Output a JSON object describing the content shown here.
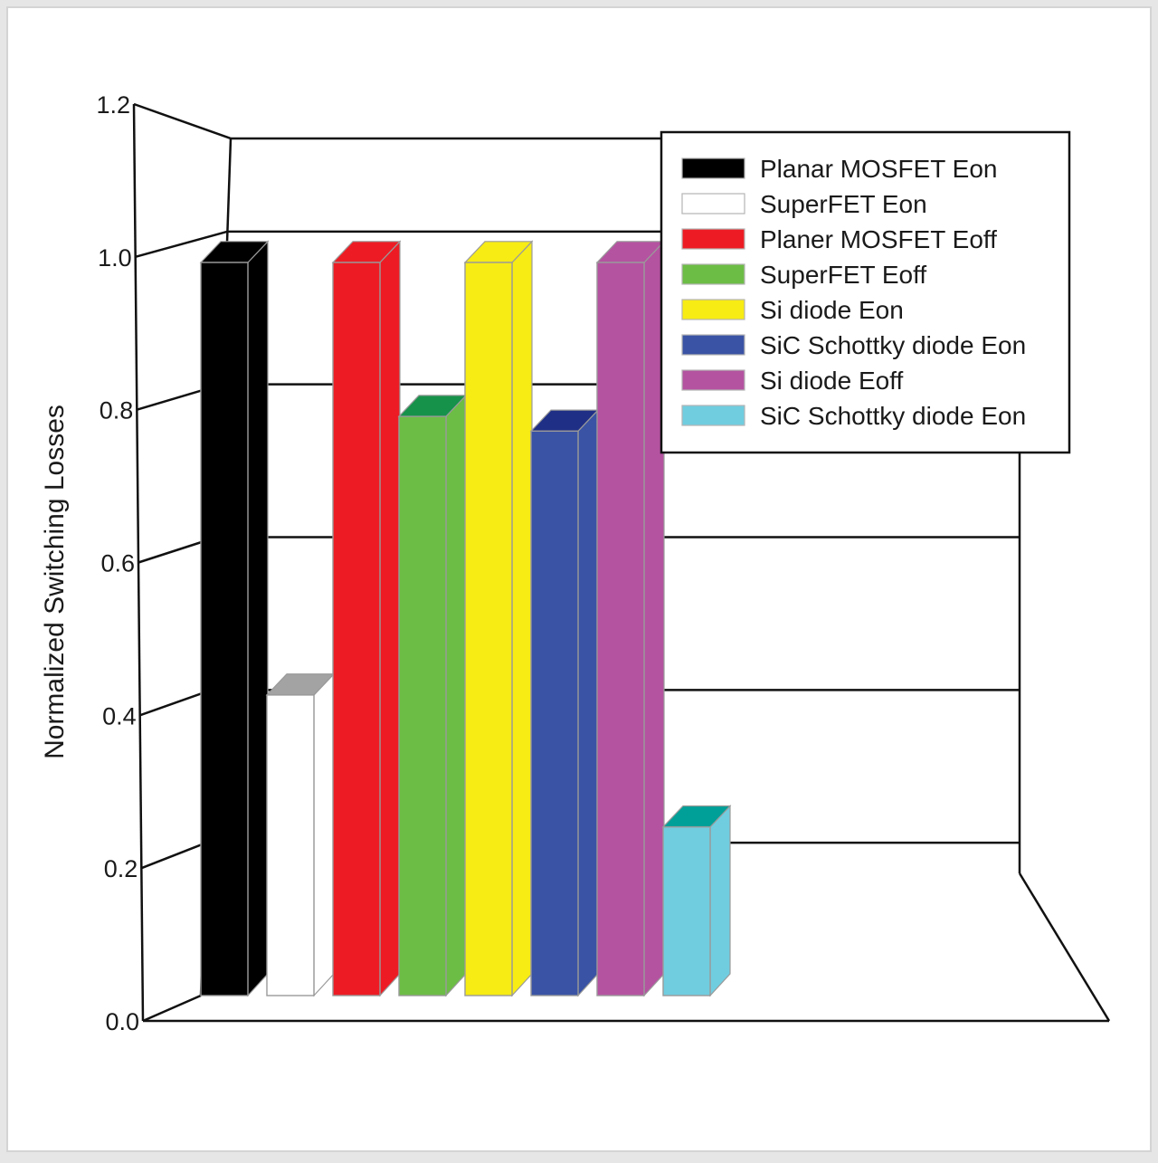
{
  "chart_data": {
    "type": "bar",
    "title": "",
    "xlabel": "",
    "ylabel": "Normalized Switching Losses",
    "ylim": [
      0,
      1.2
    ],
    "grid": true,
    "legend_position": "top-right",
    "y_ticks": [
      "0.0",
      "0.2",
      "0.4",
      "0.6",
      "0.8",
      "1.0",
      "1.2"
    ],
    "series": [
      {
        "name": "Planar MOSFET Eon",
        "value": 1.0,
        "color": "#000000",
        "side_color": "#000000",
        "top_color": "#000000"
      },
      {
        "name": "SuperFET Eon",
        "value": 0.41,
        "color": "#ffffff",
        "side_color": "#ffffff",
        "top_color": "#a3a3a3"
      },
      {
        "name": "Planer MOSFET Eoff",
        "value": 1.0,
        "color": "#ed1c24",
        "side_color": "#ed1c24",
        "top_color": "#ed1c24"
      },
      {
        "name": "SuperFET Eoff",
        "value": 0.79,
        "color": "#6cbd45",
        "side_color": "#6cbd45",
        "top_color": "#16924a"
      },
      {
        "name": "Si diode Eon",
        "value": 1.0,
        "color": "#f7ec13",
        "side_color": "#f7ec13",
        "top_color": "#f7ec13"
      },
      {
        "name": "SiC Schottky diode Eon",
        "value": 0.77,
        "color": "#3a53a4",
        "side_color": "#3a53a4",
        "top_color": "#1f2f86"
      },
      {
        "name": "Si diode Eoff",
        "value": 1.0,
        "color": "#b453a0",
        "side_color": "#b453a0",
        "top_color": "#b453a0"
      },
      {
        "name": "SiC Schottky diode Eon",
        "value": 0.23,
        "color": "#70cde0",
        "side_color": "#70cde0",
        "top_color": "#009f97"
      }
    ]
  }
}
